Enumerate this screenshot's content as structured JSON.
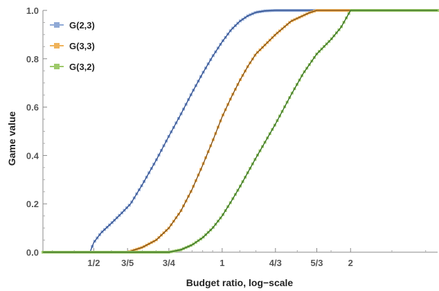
{
  "chart_data": {
    "type": "line",
    "title": "",
    "xlabel": "Budget ratio, log−scale",
    "ylabel": "Game value",
    "x_scale": "log",
    "xlim": [
      0.38,
      3.2
    ],
    "ylim": [
      0.0,
      1.0
    ],
    "x_ticks": [
      {
        "value": 0.5,
        "label": "1/2"
      },
      {
        "value": 0.6,
        "label": "3/5"
      },
      {
        "value": 0.75,
        "label": "3/4"
      },
      {
        "value": 1.0,
        "label": "1"
      },
      {
        "value": 1.3333,
        "label": "4/3"
      },
      {
        "value": 1.6667,
        "label": "5/3"
      },
      {
        "value": 2.0,
        "label": "2"
      }
    ],
    "y_ticks": [
      {
        "value": 0.0,
        "label": "0.0"
      },
      {
        "value": 0.2,
        "label": "0.2"
      },
      {
        "value": 0.4,
        "label": "0.4"
      },
      {
        "value": 0.6,
        "label": "0.6"
      },
      {
        "value": 0.8,
        "label": "0.8"
      },
      {
        "value": 1.0,
        "label": "1.0"
      }
    ],
    "grid": false,
    "legend_position": "top-left",
    "series": [
      {
        "name": "G(2,3)",
        "color": "#8fa9d6",
        "line_color": "#2c4a8a",
        "x": [
          0.38,
          0.49,
          0.5,
          0.52,
          0.55,
          0.58,
          0.61,
          0.65,
          0.7,
          0.75,
          0.8,
          0.85,
          0.9,
          0.95,
          1.0,
          1.05,
          1.1,
          1.15,
          1.2,
          1.26,
          1.3333,
          3.2
        ],
        "y": [
          0.0,
          0.0,
          0.04,
          0.08,
          0.12,
          0.16,
          0.2,
          0.28,
          0.38,
          0.48,
          0.57,
          0.66,
          0.74,
          0.81,
          0.87,
          0.92,
          0.955,
          0.978,
          0.992,
          0.998,
          1.0,
          1.0
        ]
      },
      {
        "name": "G(3,3)",
        "color": "#efb25a",
        "line_color": "#7a4a10",
        "x": [
          0.38,
          0.6,
          0.65,
          0.7,
          0.75,
          0.8,
          0.85,
          0.9,
          0.95,
          1.0,
          1.05,
          1.1,
          1.15,
          1.2,
          1.3333,
          1.45,
          1.6,
          1.6667,
          3.2
        ],
        "y": [
          0.0,
          0.0,
          0.02,
          0.05,
          0.1,
          0.17,
          0.26,
          0.36,
          0.46,
          0.56,
          0.64,
          0.71,
          0.77,
          0.82,
          0.9,
          0.955,
          0.99,
          1.0,
          1.0
        ]
      },
      {
        "name": "G(3,2)",
        "color": "#9dc96a",
        "line_color": "#2f6a1e",
        "x": [
          0.38,
          0.75,
          0.8,
          0.85,
          0.9,
          0.95,
          1.0,
          1.05,
          1.1,
          1.2,
          1.3333,
          1.45,
          1.55,
          1.6667,
          1.8,
          1.9,
          2.0,
          3.2
        ],
        "y": [
          0.0,
          0.0,
          0.01,
          0.03,
          0.06,
          0.1,
          0.15,
          0.21,
          0.27,
          0.39,
          0.53,
          0.65,
          0.74,
          0.82,
          0.88,
          0.93,
          1.0,
          1.0
        ]
      }
    ]
  }
}
